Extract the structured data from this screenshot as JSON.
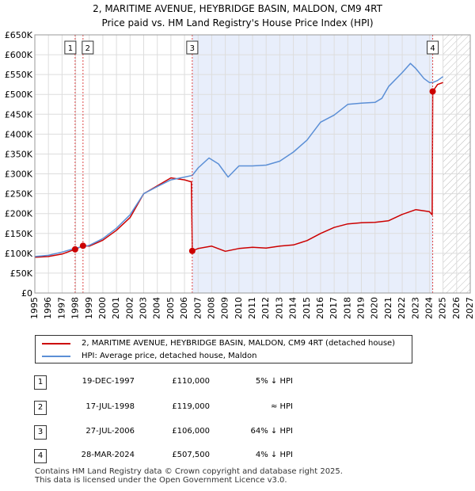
{
  "title_line1": "2, MARITIME AVENUE, HEYBRIDGE BASIN, MALDON, CM9 4RT",
  "title_line2": "Price paid vs. HM Land Registry's House Price Index (HPI)",
  "chart_data": {
    "type": "line",
    "title": "2, MARITIME AVENUE, HEYBRIDGE BASIN, MALDON, CM9 4RT — Price paid vs. HM Land Registry's House Price Index (HPI)",
    "xlim": [
      1995,
      2027
    ],
    "ylim": [
      0,
      650000
    ],
    "y_ticks": [
      0,
      50000,
      100000,
      150000,
      200000,
      250000,
      300000,
      350000,
      400000,
      450000,
      500000,
      550000,
      600000,
      650000
    ],
    "y_tick_labels": [
      "£0",
      "£50K",
      "£100K",
      "£150K",
      "£200K",
      "£250K",
      "£300K",
      "£350K",
      "£400K",
      "£450K",
      "£500K",
      "£550K",
      "£600K",
      "£650K"
    ],
    "x_ticks": [
      1995,
      1996,
      1997,
      1998,
      1999,
      2000,
      2001,
      2002,
      2003,
      2004,
      2005,
      2006,
      2007,
      2008,
      2009,
      2010,
      2011,
      2012,
      2013,
      2014,
      2015,
      2016,
      2017,
      2018,
      2019,
      2020,
      2021,
      2022,
      2023,
      2024,
      2025,
      2026,
      2027
    ],
    "x_tick_labels": [
      "1995",
      "1996",
      "1997",
      "1998",
      "1999",
      "2000",
      "2001",
      "2002",
      "2003",
      "2004",
      "2005",
      "2006",
      "2007",
      "2008",
      "2009",
      "2010",
      "2011",
      "2012",
      "2013",
      "2014",
      "2015",
      "2016",
      "2017",
      "2018",
      "2019",
      "2020",
      "2021",
      "2022",
      "2023",
      "2024",
      "2025",
      "2026",
      "2027"
    ],
    "grid": true,
    "shaded_between": [
      2006.57,
      2024.24
    ],
    "forecast_hatch_from": 2025.0,
    "series": [
      {
        "name": "2, MARITIME AVENUE, HEYBRIDGE BASIN, MALDON, CM9 4RT (detached house)",
        "color": "#cc0000",
        "x": [
          1995.0,
          1996.0,
          1997.0,
          1997.96,
          1998.54,
          1999.0,
          2000.0,
          2001.0,
          2002.0,
          2003.0,
          2004.0,
          2005.0,
          2006.0,
          2006.5,
          2006.57,
          2007.0,
          2008.0,
          2009.0,
          2010.0,
          2011.0,
          2012.0,
          2013.0,
          2014.0,
          2015.0,
          2016.0,
          2017.0,
          2018.0,
          2019.0,
          2020.0,
          2021.0,
          2022.0,
          2023.0,
          2024.0,
          2024.2,
          2024.24,
          2024.6,
          2025.0
        ],
        "y": [
          90000,
          92000,
          98000,
          110000,
          119000,
          118000,
          133000,
          158000,
          190000,
          250000,
          270000,
          290000,
          285000,
          280000,
          106000,
          112000,
          118000,
          105000,
          112000,
          115000,
          113000,
          118000,
          121000,
          132000,
          150000,
          165000,
          174000,
          177000,
          178000,
          182000,
          198000,
          210000,
          205000,
          197000,
          507500,
          525000,
          530000
        ]
      },
      {
        "name": "HPI: Average price, detached house, Maldon",
        "color": "#5b8fd6",
        "x": [
          1995.0,
          1996.0,
          1997.0,
          1998.0,
          1999.0,
          2000.0,
          2001.0,
          2002.0,
          2003.0,
          2004.0,
          2005.0,
          2006.0,
          2006.57,
          2007.0,
          2007.8,
          2008.5,
          2009.2,
          2010.0,
          2011.0,
          2012.0,
          2013.0,
          2014.0,
          2015.0,
          2016.0,
          2017.0,
          2018.0,
          2019.0,
          2020.0,
          2020.5,
          2021.0,
          2022.0,
          2022.6,
          2023.0,
          2023.6,
          2024.0,
          2024.24,
          2024.6,
          2025.0
        ],
        "y": [
          92000,
          95000,
          103000,
          113000,
          120000,
          137000,
          163000,
          197000,
          250000,
          268000,
          285000,
          292000,
          296000,
          315000,
          340000,
          325000,
          292000,
          320000,
          320000,
          322000,
          332000,
          355000,
          385000,
          430000,
          448000,
          475000,
          478000,
          480000,
          490000,
          520000,
          555000,
          578000,
          565000,
          540000,
          530000,
          530000,
          535000,
          545000
        ]
      }
    ],
    "sales": [
      {
        "label": "1",
        "x": 1997.96,
        "y": 110000
      },
      {
        "label": "2",
        "x": 1998.54,
        "y": 119000
      },
      {
        "label": "3",
        "x": 2006.57,
        "y": 106000
      },
      {
        "label": "4",
        "x": 2024.24,
        "y": 507500
      }
    ]
  },
  "legend": {
    "property_label": "2, MARITIME AVENUE, HEYBRIDGE BASIN, MALDON, CM9 4RT (detached house)",
    "hpi_label": "HPI: Average price, detached house, Maldon",
    "property_color": "#cc0000",
    "hpi_color": "#5b8fd6"
  },
  "sales_table": [
    {
      "num": "1",
      "date": "19-DEC-1997",
      "price": "£110,000",
      "hpi": "5% ↓ HPI"
    },
    {
      "num": "2",
      "date": "17-JUL-1998",
      "price": "£119,000",
      "hpi": "≈ HPI"
    },
    {
      "num": "3",
      "date": "27-JUL-2006",
      "price": "£106,000",
      "hpi": "64% ↓ HPI"
    },
    {
      "num": "4",
      "date": "28-MAR-2024",
      "price": "£507,500",
      "hpi": "4% ↓ HPI"
    }
  ],
  "footer_line1": "Contains HM Land Registry data © Crown copyright and database right 2025.",
  "footer_line2": "This data is licensed under the Open Government Licence v3.0."
}
